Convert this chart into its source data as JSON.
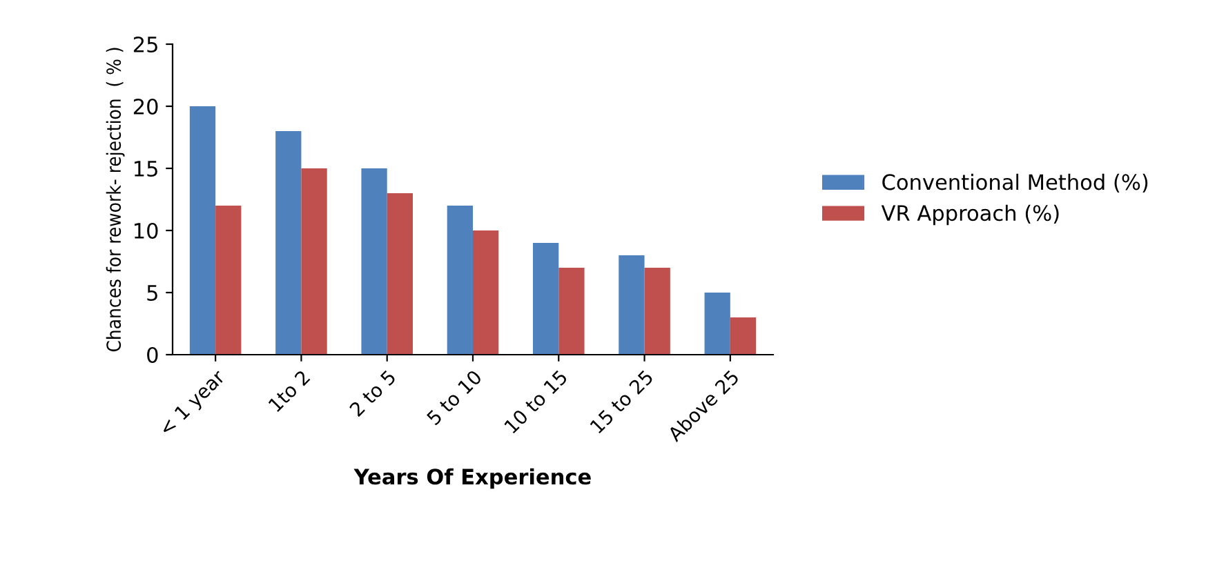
{
  "chart_data": {
    "type": "bar",
    "xlabel": "Years Of Experience",
    "ylabel": "Chances for rework- rejection  ( % )",
    "categories": [
      "< 1 year",
      "1to 2",
      "2 to 5",
      "5 to 10",
      "10 to 15",
      "15 to 25",
      "Above 25"
    ],
    "series": [
      {
        "name": "Conventional Method (%)",
        "color": "#4f81bd",
        "values": [
          20,
          18,
          15,
          12,
          9,
          8,
          5
        ]
      },
      {
        "name": "VR Approach (%)",
        "color": "#c0504d",
        "values": [
          12,
          15,
          13,
          10,
          7,
          7,
          3
        ]
      }
    ],
    "ylim": [
      0,
      25
    ],
    "yticks": [
      0,
      5,
      10,
      15,
      20,
      25
    ],
    "grid": false,
    "legend": "right"
  }
}
